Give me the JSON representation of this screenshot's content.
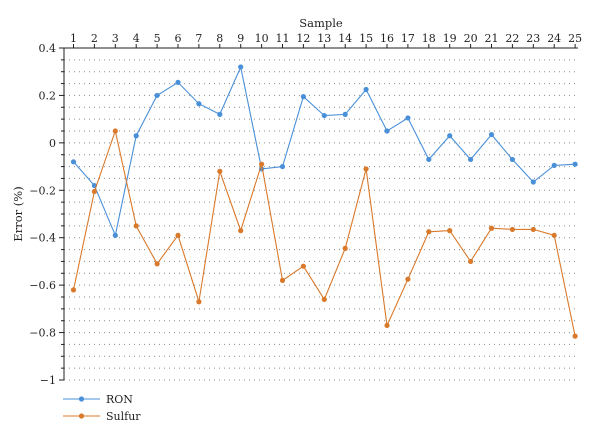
{
  "chart_data": {
    "type": "line",
    "title": "",
    "xlabel": "Sample",
    "ylabel": "Error (%)",
    "xaxis_position": "top",
    "x": [
      1,
      2,
      3,
      4,
      5,
      6,
      7,
      8,
      9,
      10,
      11,
      12,
      13,
      14,
      15,
      16,
      17,
      18,
      19,
      20,
      21,
      22,
      23,
      24,
      25
    ],
    "x_tick_labels": [
      "1",
      "2",
      "3",
      "4",
      "5",
      "6",
      "7",
      "8",
      "9",
      "10",
      "11",
      "12",
      "13",
      "14",
      "15",
      "16",
      "17",
      "18",
      "19",
      "20",
      "21",
      "22",
      "23",
      "24",
      "25"
    ],
    "ylim": [
      -1,
      0.4
    ],
    "y_ticks": [
      0.4,
      0.2,
      0,
      -0.2,
      -0.4,
      -0.6,
      -0.8,
      -1
    ],
    "y_tick_labels": [
      "0.4",
      "0.2",
      "0",
      "−0.2",
      "−0.4",
      "−0.6",
      "−0.8",
      "−1"
    ],
    "grid": true,
    "legend_position": "bottom-left",
    "series": [
      {
        "name": "RON",
        "color": "#4a90d9",
        "values": [
          -0.08,
          -0.18,
          -0.39,
          0.03,
          0.2,
          0.255,
          0.165,
          0.12,
          0.32,
          -0.11,
          -0.1,
          0.195,
          0.115,
          0.12,
          0.225,
          0.05,
          0.105,
          -0.07,
          0.03,
          -0.07,
          0.035,
          -0.07,
          -0.165,
          -0.095,
          -0.09
        ]
      },
      {
        "name": "Sulfur",
        "color": "#d9792b",
        "values": [
          -0.62,
          -0.205,
          0.05,
          -0.35,
          -0.51,
          -0.39,
          -0.67,
          -0.12,
          -0.37,
          -0.09,
          -0.58,
          -0.52,
          -0.66,
          -0.445,
          -0.11,
          -0.77,
          -0.575,
          -0.375,
          -0.37,
          -0.5,
          -0.36,
          -0.365,
          -0.365,
          -0.39,
          -0.815
        ]
      }
    ]
  }
}
